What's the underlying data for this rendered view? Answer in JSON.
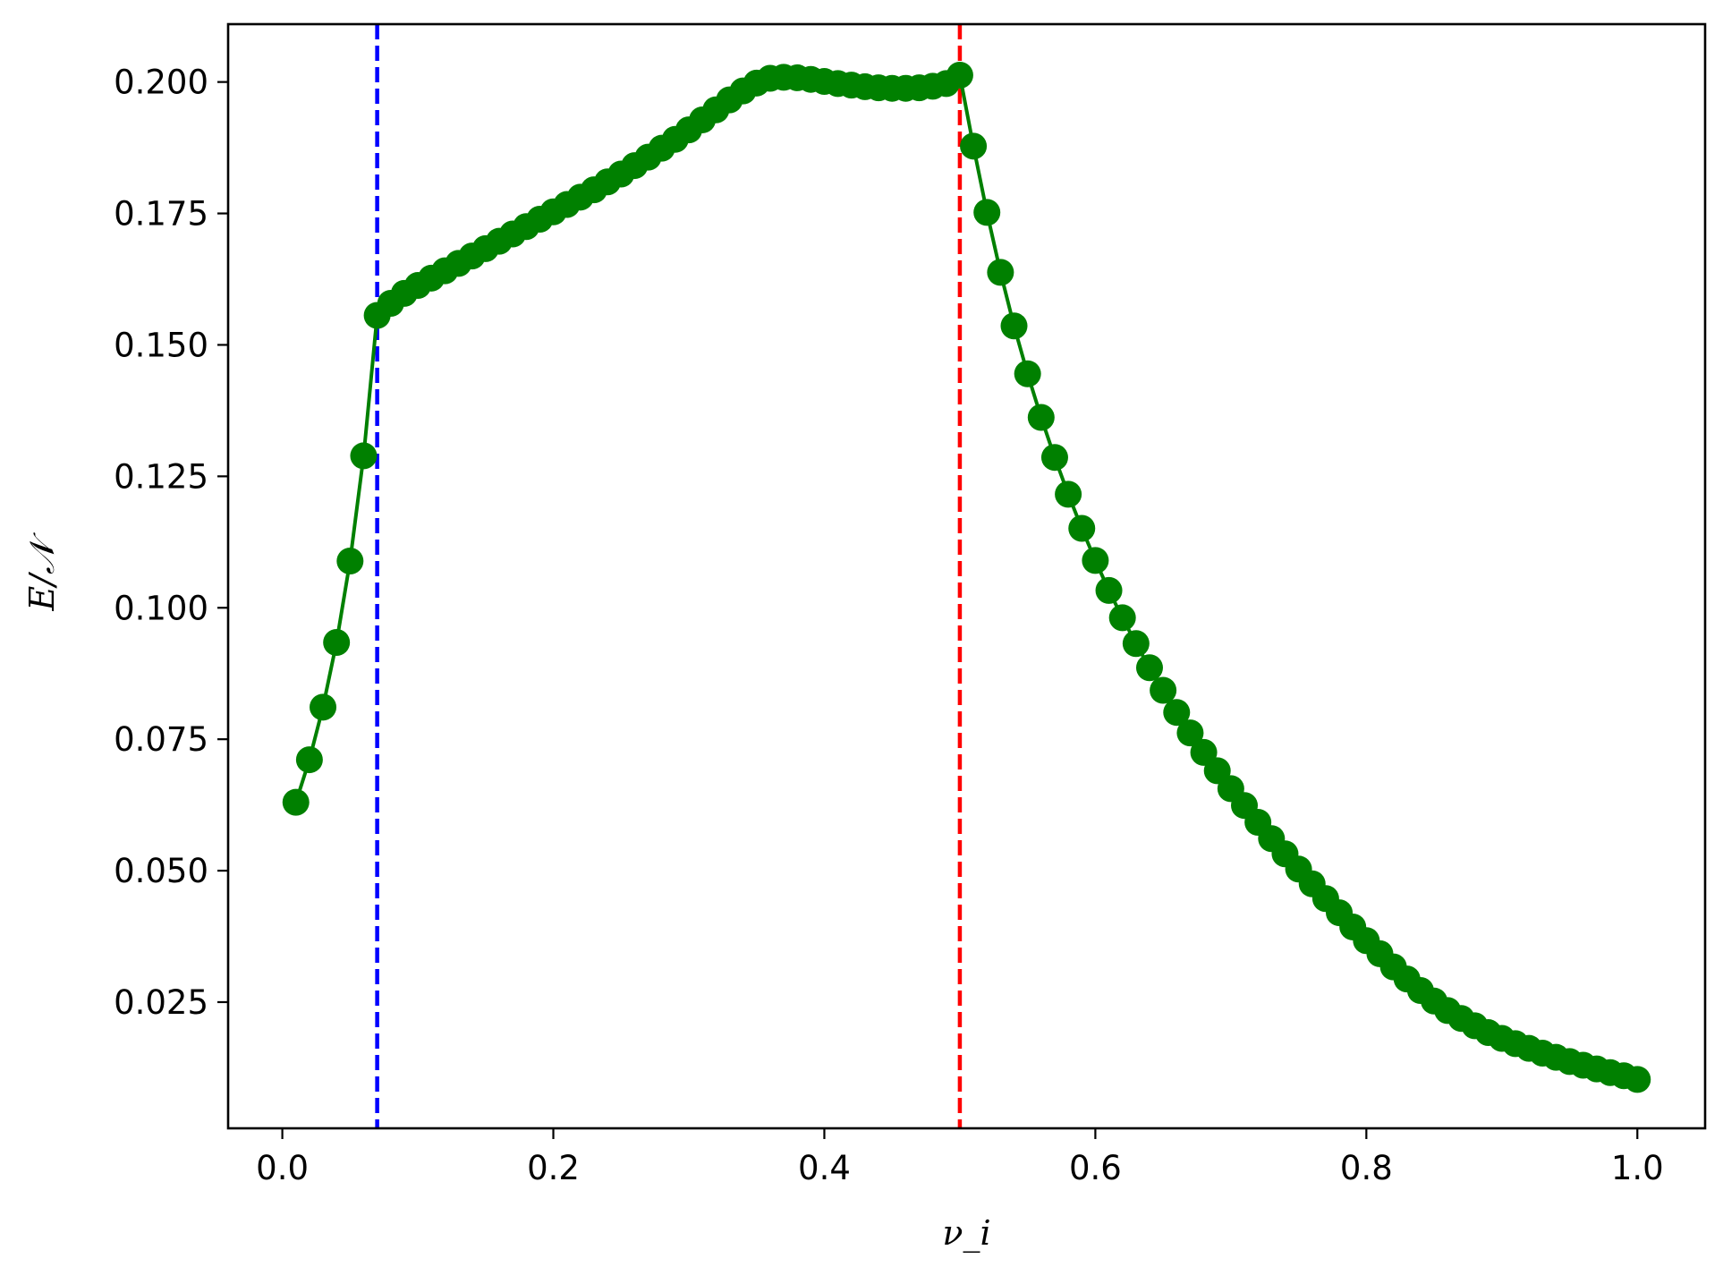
{
  "chart_data": {
    "type": "line",
    "title": "",
    "xlabel": "ν_i",
    "ylabel": "E/𝒩",
    "xlim": [
      -0.04,
      1.05
    ],
    "ylim": [
      0.001,
      0.211
    ],
    "grid": false,
    "legend": "none",
    "x_ticks": [
      0.0,
      0.2,
      0.4,
      0.6,
      0.8,
      1.0
    ],
    "x_tick_labels": [
      "0.0",
      "0.2",
      "0.4",
      "0.6",
      "0.8",
      "1.0"
    ],
    "y_ticks": [
      0.025,
      0.05,
      0.075,
      0.1,
      0.125,
      0.15,
      0.175,
      0.2
    ],
    "y_tick_labels": [
      "0.025",
      "0.050",
      "0.075",
      "0.100",
      "0.125",
      "0.150",
      "0.175",
      "0.200"
    ],
    "vlines": [
      {
        "x": 0.07,
        "color": "#0000ff",
        "style": "dashed"
      },
      {
        "x": 0.5,
        "color": "#ff0000",
        "style": "dashed"
      }
    ],
    "series": [
      {
        "color": "#008000",
        "marker": "circle",
        "x": [
          0.01,
          0.02,
          0.03,
          0.04,
          0.05,
          0.06,
          0.07,
          0.08,
          0.09,
          0.1,
          0.11,
          0.12,
          0.13,
          0.14,
          0.15,
          0.16,
          0.17,
          0.18,
          0.19,
          0.2,
          0.21,
          0.22,
          0.23,
          0.24,
          0.25,
          0.26,
          0.27,
          0.28,
          0.29,
          0.3,
          0.31,
          0.32,
          0.33,
          0.34,
          0.35,
          0.36,
          0.37,
          0.38,
          0.39,
          0.4,
          0.41,
          0.42,
          0.43,
          0.44,
          0.45,
          0.46,
          0.47,
          0.48,
          0.49,
          0.5,
          0.51,
          0.52,
          0.53,
          0.54,
          0.55,
          0.56,
          0.57,
          0.58,
          0.59,
          0.6,
          0.61,
          0.62,
          0.63,
          0.64,
          0.65,
          0.66,
          0.67,
          0.68,
          0.69,
          0.7,
          0.71,
          0.72,
          0.73,
          0.74,
          0.75,
          0.76,
          0.77,
          0.78,
          0.79,
          0.8,
          0.81,
          0.82,
          0.83,
          0.84,
          0.85,
          0.86,
          0.87,
          0.88,
          0.89,
          0.9,
          0.91,
          0.92,
          0.93,
          0.94,
          0.95,
          0.96,
          0.97,
          0.98,
          0.99,
          1.0
        ],
        "y": [
          0.063,
          0.0711,
          0.0811,
          0.0934,
          0.1089,
          0.1289,
          0.1556,
          0.1579,
          0.1598,
          0.1613,
          0.1627,
          0.1641,
          0.1655,
          0.1669,
          0.1683,
          0.1697,
          0.1711,
          0.1725,
          0.1739,
          0.1753,
          0.1767,
          0.1781,
          0.1795,
          0.181,
          0.1825,
          0.1841,
          0.1857,
          0.1874,
          0.1891,
          0.1909,
          0.1928,
          0.1947,
          0.1966,
          0.1983,
          0.1998,
          0.2007,
          0.2009,
          0.2008,
          0.2005,
          0.2001,
          0.1997,
          0.1994,
          0.1991,
          0.1989,
          0.1988,
          0.1988,
          0.1989,
          0.1992,
          0.1997,
          0.2013,
          0.1878,
          0.1752,
          0.1638,
          0.1536,
          0.1445,
          0.1362,
          0.1286,
          0.1216,
          0.1151,
          0.109,
          0.1033,
          0.0981,
          0.0932,
          0.0886,
          0.0843,
          0.0801,
          0.0762,
          0.0725,
          0.069,
          0.0656,
          0.0624,
          0.0592,
          0.0561,
          0.0532,
          0.0503,
          0.0475,
          0.0447,
          0.042,
          0.0393,
          0.0367,
          0.0342,
          0.0317,
          0.0294,
          0.0272,
          0.0252,
          0.0234,
          0.0219,
          0.0205,
          0.0192,
          0.0181,
          0.0171,
          0.0162,
          0.0153,
          0.0145,
          0.0137,
          0.013,
          0.0123,
          0.0116,
          0.011,
          0.0103
        ]
      }
    ]
  }
}
